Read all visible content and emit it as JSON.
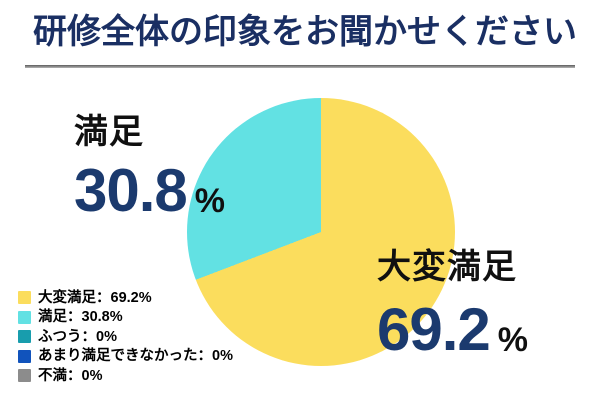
{
  "header": {
    "title": "研修全体の印象をお聞かせください",
    "title_color": "#1a2f63",
    "underline_color": "#8a8a8a"
  },
  "colors": {
    "background": "#ffffff",
    "callout_number": "#1b3a6e",
    "callout_label": "#101010"
  },
  "chart_data": {
    "type": "pie",
    "title": "研修全体の印象をお聞かせください",
    "start_angle_deg": 0,
    "direction": "clockwise",
    "legend_position": "bottom-left",
    "slices": [
      {
        "label": "大変満足",
        "value": 69.2,
        "color": "#fbdd5d"
      },
      {
        "label": "満足",
        "value": 30.8,
        "color": "#62e1e3"
      },
      {
        "label": "ふつう",
        "value": 0,
        "color": "#189dad"
      },
      {
        "label": "あまり満足できなかった",
        "value": 0,
        "color": "#1153bc"
      },
      {
        "label": "不満",
        "value": 0,
        "color": "#8c8c8c"
      }
    ],
    "callouts": {
      "right": {
        "label": "大変満足",
        "value": "69.2",
        "unit": "%"
      },
      "left": {
        "label": "満足",
        "value": "30.8",
        "unit": "%"
      }
    }
  },
  "legend": {
    "value_separator": "：",
    "value_suffix": "%"
  }
}
